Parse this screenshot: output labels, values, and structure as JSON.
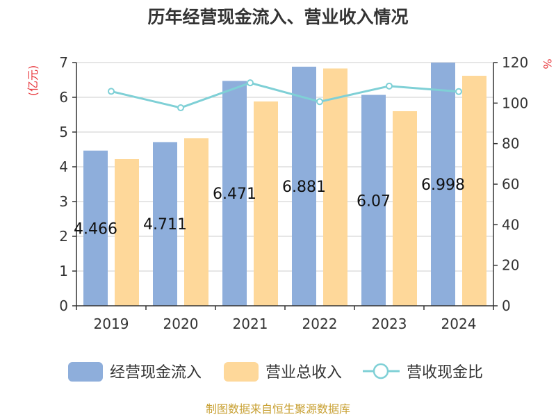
{
  "chart_data": {
    "type": "bar",
    "title": "历年经营现金流入、营业收入情况",
    "categories": [
      "2019",
      "2020",
      "2021",
      "2022",
      "2023",
      "2024"
    ],
    "series": [
      {
        "name": "经营现金流入",
        "type": "bar",
        "axis": "left",
        "color": "#8eaedb",
        "values": [
          4.466,
          4.711,
          6.471,
          6.881,
          6.07,
          6.998
        ]
      },
      {
        "name": "营业总收入",
        "type": "bar",
        "axis": "left",
        "color": "#fed89a",
        "values": [
          4.22,
          4.82,
          5.88,
          6.83,
          5.6,
          6.62
        ]
      },
      {
        "name": "营收现金比",
        "type": "line",
        "axis": "right",
        "color": "#7fd0d6",
        "values": [
          105.8,
          97.7,
          110.0,
          100.7,
          108.4,
          105.7
        ]
      }
    ],
    "data_labels": [
      "4.466",
      "4.711",
      "6.471",
      "6.881",
      "6.07",
      "6.998"
    ],
    "y_left": {
      "label": "(亿元)",
      "ylim": [
        0,
        7
      ],
      "ticks": [
        "0",
        "1",
        "2",
        "3",
        "4",
        "5",
        "6",
        "7"
      ]
    },
    "y_right": {
      "label": "%",
      "ylim": [
        0,
        120
      ],
      "ticks": [
        "0",
        "20",
        "40",
        "60",
        "80",
        "100",
        "120"
      ]
    },
    "grid": true,
    "legend_position": "bottom"
  },
  "source": "制图数据来自恒生聚源数据库"
}
